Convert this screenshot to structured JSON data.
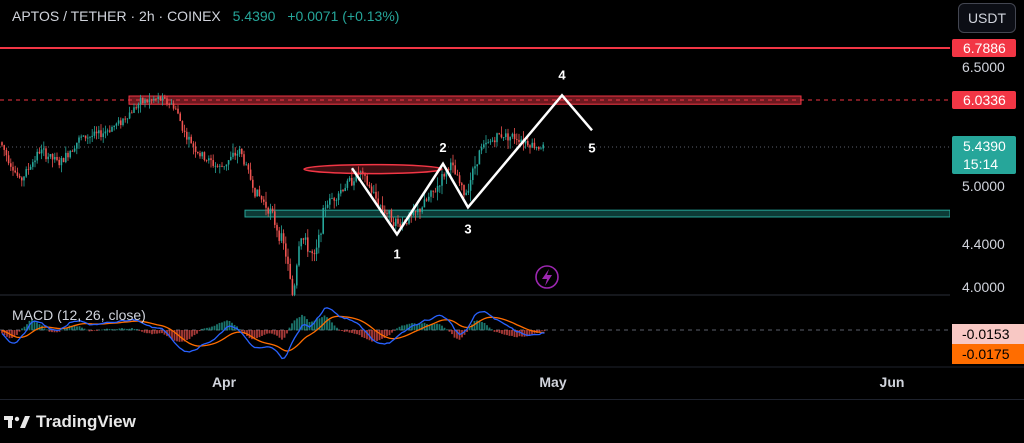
{
  "header": {
    "symbol": "APTOS / TETHER · 2h · COINEX",
    "last_price": "5.4390",
    "change": "+0.0071 (+0.13%)",
    "currency": "USDT"
  },
  "indicator": {
    "label": "MACD (12, 26, close)"
  },
  "footer": {
    "brand": "TradingView"
  },
  "colors": {
    "up": "#26a69a",
    "down": "#ef5350",
    "resistance": "#f23645",
    "support": "#26a69a",
    "macd_line": "#2962ff",
    "signal_line": "#ff6d00"
  },
  "chart_data": [
    {
      "type": "candlestick",
      "title": "APTOS / TETHER · 2h · COINEX",
      "ylim": [
        3.85,
        7.15
      ],
      "y_ticks": [
        "6.5000",
        "5.0000",
        "4.4000",
        "4.0000"
      ],
      "x_ticks": [
        "Apr",
        "May",
        "Jun"
      ],
      "grid": false,
      "price_path": [
        [
          0,
          5.5
        ],
        [
          20,
          5.05
        ],
        [
          40,
          5.4
        ],
        [
          60,
          5.25
        ],
        [
          80,
          5.55
        ],
        [
          100,
          5.6
        ],
        [
          120,
          5.75
        ],
        [
          140,
          6.0
        ],
        [
          160,
          6.05
        ],
        [
          175,
          5.95
        ],
        [
          185,
          5.6
        ],
        [
          200,
          5.35
        ],
        [
          220,
          5.2
        ],
        [
          240,
          5.4
        ],
        [
          255,
          4.95
        ],
        [
          270,
          4.75
        ],
        [
          285,
          4.35
        ],
        [
          293,
          3.9
        ],
        [
          300,
          4.5
        ],
        [
          315,
          4.25
        ],
        [
          325,
          4.8
        ],
        [
          345,
          5.0
        ],
        [
          360,
          5.15
        ],
        [
          380,
          4.8
        ],
        [
          398,
          4.6
        ],
        [
          415,
          4.7
        ],
        [
          435,
          4.95
        ],
        [
          450,
          5.25
        ],
        [
          465,
          4.9
        ],
        [
          480,
          5.4
        ],
        [
          500,
          5.6
        ],
        [
          520,
          5.55
        ],
        [
          535,
          5.45
        ],
        [
          545,
          5.44
        ]
      ],
      "last_price": {
        "value": 5.439,
        "label": "5.4390",
        "countdown": "15:14"
      },
      "levels": [
        {
          "name": "resistance-line",
          "value": 6.7886,
          "label": "6.7886",
          "style": "solid",
          "color": "#f23645"
        },
        {
          "name": "resistance-zone-line",
          "value": 6.0336,
          "label": "6.0336",
          "style": "dashed",
          "color": "#f23645"
        }
      ],
      "resistance_zone": {
        "top": 6.09,
        "bottom": 5.98
      },
      "support_zone": {
        "top": 4.75,
        "bottom": 4.69
      },
      "ellipse": {
        "center": 5.19,
        "height": 0.1
      },
      "wave_path": [
        {
          "x_pos": 352,
          "price": 5.2,
          "label": ""
        },
        {
          "x_pos": 397,
          "price": 4.5,
          "label": "1"
        },
        {
          "x_pos": 443,
          "price": 5.25,
          "label": "2"
        },
        {
          "x_pos": 468,
          "price": 4.78,
          "label": "3"
        },
        {
          "x_pos": 562,
          "price": 6.1,
          "label": "4"
        },
        {
          "x_pos": 592,
          "price": 5.65,
          "label": "5"
        }
      ]
    },
    {
      "type": "macd",
      "title": "MACD (12, 26, close)",
      "series": [
        {
          "name": "MACD",
          "last": "-0.0153"
        },
        {
          "name": "Signal",
          "last": "-0.0175"
        }
      ]
    }
  ]
}
